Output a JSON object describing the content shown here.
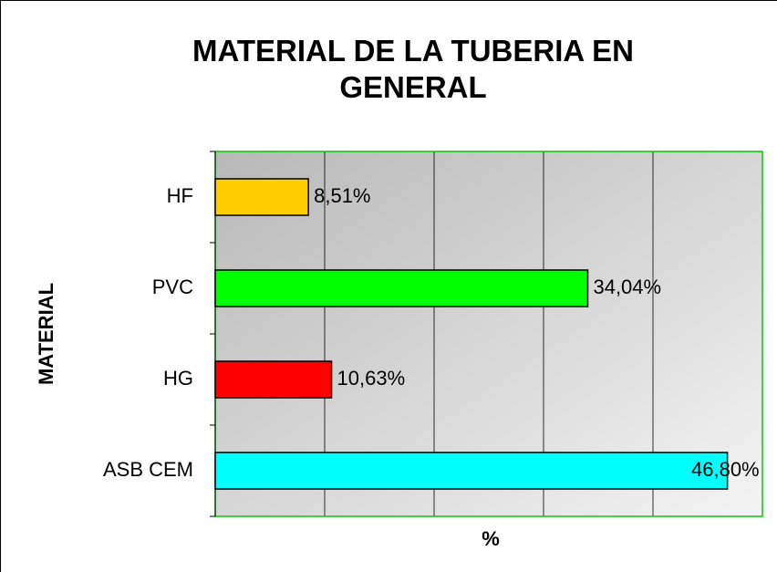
{
  "chart_data": {
    "type": "bar",
    "orientation": "horizontal",
    "title": "MATERIAL DE LA TUBERIA EN GENERAL",
    "x_label": "%",
    "y_label": "MATERIAL",
    "categories": [
      "HF",
      "PVC",
      "HG",
      "ASB CEM"
    ],
    "values": [
      8.51,
      34.04,
      10.63,
      46.8
    ],
    "value_labels": [
      "8,51%",
      "34,04%",
      "10,63%",
      "46,80%"
    ],
    "colors": [
      "#ffcc00",
      "#00ff00",
      "#ff0000",
      "#00ffff"
    ],
    "xlim": [
      0,
      50
    ],
    "xticks": [
      0,
      10,
      20,
      30,
      40,
      50
    ],
    "grid": true
  }
}
